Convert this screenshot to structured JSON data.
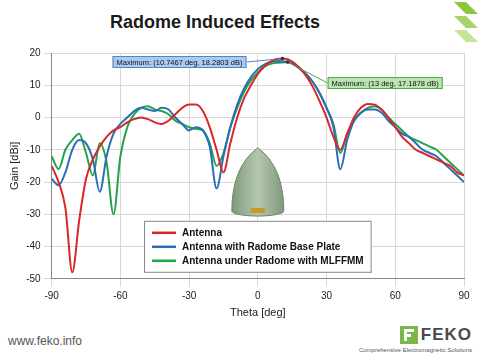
{
  "chart_data": {
    "type": "line",
    "title": "Radome Induced Effects",
    "xlabel": "Theta [deg]",
    "ylabel": "Gain [dBi]",
    "x": [
      -90,
      -87,
      -84,
      -81,
      -78,
      -75,
      -72,
      -69,
      -66,
      -63,
      -60,
      -57,
      -54,
      -51,
      -48,
      -45,
      -42,
      -39,
      -36,
      -33,
      -30,
      -27,
      -24,
      -21,
      -18,
      -15,
      -12,
      -9,
      -6,
      -3,
      0,
      3,
      6,
      9,
      12,
      15,
      18,
      21,
      24,
      27,
      30,
      33,
      36,
      39,
      42,
      45,
      48,
      51,
      54,
      57,
      60,
      63,
      66,
      69,
      72,
      75,
      78,
      81,
      84,
      87,
      90
    ],
    "series": [
      {
        "name": "Antenna",
        "color": "#d9262a",
        "values": [
          -15,
          -20,
          -28,
          -48,
          -32,
          -19,
          -13,
          -9,
          -6,
          -4,
          -3,
          -1.5,
          -0.5,
          0,
          -0.5,
          -1.5,
          -2,
          -1,
          1,
          3,
          4,
          4,
          2,
          -3,
          -10,
          -17,
          -8,
          0,
          6,
          10,
          13.5,
          16,
          17.5,
          18.2,
          18.2,
          17.3,
          15.5,
          13,
          9.5,
          5,
          0,
          -6,
          -10,
          -5,
          0,
          3,
          4.2,
          4,
          2.5,
          0,
          -3,
          -6,
          -8,
          -10,
          -11,
          -12,
          -13,
          -14,
          -15,
          -17,
          -18
        ]
      },
      {
        "name": "Antenna with Radome Base Plate",
        "color": "#2a6eb5",
        "values": [
          -19,
          -21,
          -17,
          -10,
          -7,
          -8,
          -13,
          -23,
          -12,
          -5,
          -2,
          0,
          2,
          3,
          2.5,
          2,
          3,
          2.5,
          0,
          -2,
          -4,
          -3,
          -4,
          -9,
          -22,
          -12,
          -3,
          4,
          9,
          12.5,
          15,
          16.5,
          17.3,
          17.5,
          17.4,
          16.7,
          15.3,
          13.5,
          11,
          7.5,
          3,
          -3,
          -16,
          -7,
          -1,
          1.5,
          2.5,
          2.5,
          1.5,
          -1,
          -3,
          -5,
          -6,
          -8,
          -10,
          -11,
          -12,
          -14,
          -16,
          -18,
          -20
        ]
      },
      {
        "name": "Antenna under Radome with MLFFMM",
        "color": "#22a34a",
        "values": [
          -12,
          -16,
          -10,
          -7,
          -5,
          -11,
          -18,
          -8,
          -14,
          -30,
          -12,
          -3,
          1,
          3,
          3.5,
          2.5,
          2,
          1,
          -1,
          -2,
          -3,
          -3.5,
          -4,
          -8,
          -15,
          -11,
          -3,
          3,
          8,
          11.5,
          14,
          15.8,
          16.7,
          17,
          17.1,
          16.8,
          15.5,
          13.5,
          11,
          7.5,
          3,
          -2,
          -11,
          -5,
          -1,
          1.5,
          3,
          3.5,
          2.5,
          0,
          -2,
          -4,
          -6,
          -7,
          -8,
          -9,
          -10,
          -12,
          -14,
          -16,
          -18
        ]
      }
    ],
    "xlim": [
      -90,
      90
    ],
    "xticks": [
      -90,
      -60,
      -30,
      0,
      30,
      60,
      90
    ],
    "ylim": [
      -50,
      20
    ],
    "yticks": [
      -50,
      -40,
      -30,
      -20,
      -10,
      0,
      10,
      20
    ],
    "grid": true,
    "legend": "lower center",
    "annotations": [
      {
        "text": "Maximum: (10.7467 deg, 18.2803 dB)",
        "x": 10.7467,
        "y": 18.2803
      },
      {
        "text": "Maximum: (13 deg, 17.1878 dB)",
        "x": 13,
        "y": 17.1878
      }
    ]
  },
  "footer": {
    "url": "www.feko.info",
    "logo": "FEKO",
    "tagline": "Comprehensive Electromagnetic Solutions"
  }
}
